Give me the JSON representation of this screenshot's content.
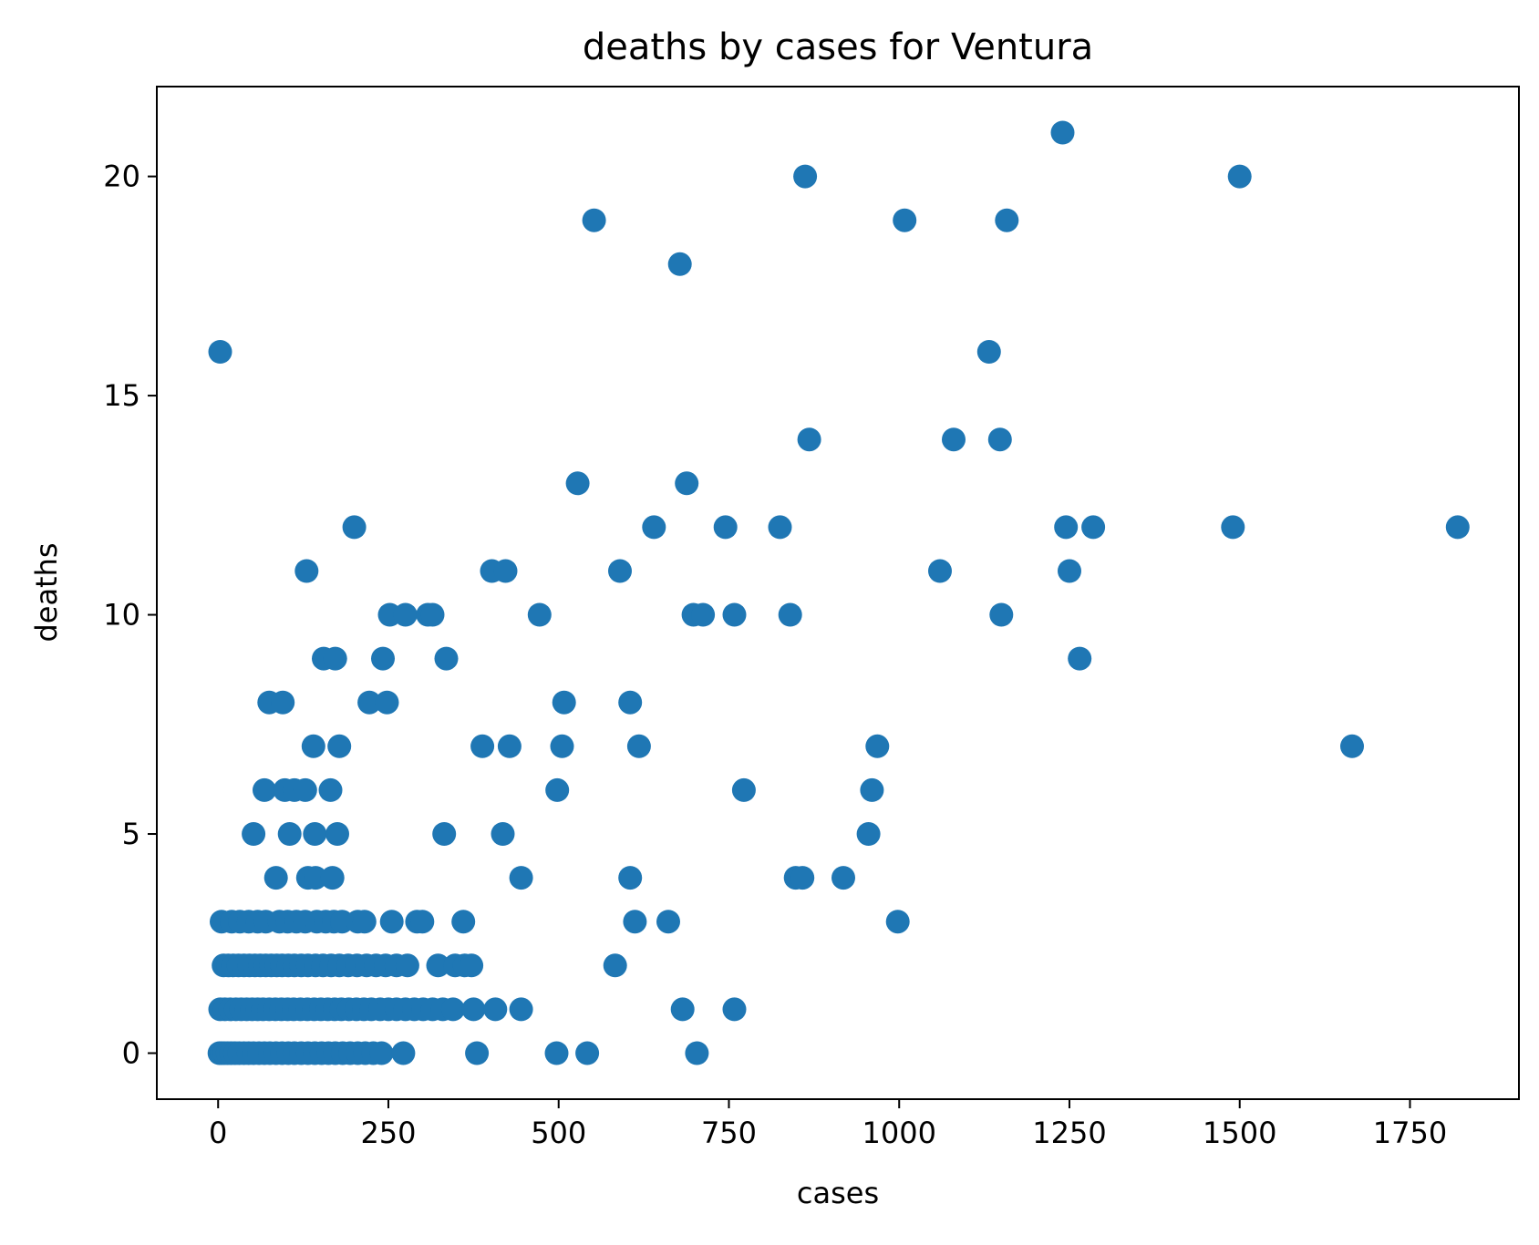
{
  "chart_data": {
    "type": "scatter",
    "title": "deaths by cases for Ventura",
    "xlabel": "cases",
    "ylabel": "deaths",
    "xlim": [
      -90,
      1910
    ],
    "ylim": [
      -1.05,
      22.05
    ],
    "xticks": [
      0,
      250,
      500,
      750,
      1000,
      1250,
      1500,
      1750
    ],
    "yticks": [
      0,
      5,
      10,
      15,
      20
    ],
    "xtick_labels": [
      "0",
      "250",
      "500",
      "750",
      "1000",
      "1250",
      "1500",
      "1750"
    ],
    "ytick_labels": [
      "0",
      "5",
      "10",
      "15",
      "20"
    ],
    "grid": false,
    "legend": "none",
    "marker_color": "#1f77b4",
    "points": [
      [
        2,
        0
      ],
      [
        5,
        0
      ],
      [
        9,
        0
      ],
      [
        14,
        0
      ],
      [
        19,
        0
      ],
      [
        25,
        0
      ],
      [
        31,
        0
      ],
      [
        38,
        0
      ],
      [
        45,
        0
      ],
      [
        52,
        0
      ],
      [
        60,
        0
      ],
      [
        68,
        0
      ],
      [
        76,
        0
      ],
      [
        85,
        0
      ],
      [
        94,
        0
      ],
      [
        103,
        0
      ],
      [
        112,
        0
      ],
      [
        122,
        0
      ],
      [
        132,
        0
      ],
      [
        142,
        0
      ],
      [
        152,
        0
      ],
      [
        162,
        0
      ],
      [
        172,
        0
      ],
      [
        183,
        0
      ],
      [
        194,
        0
      ],
      [
        205,
        0
      ],
      [
        216,
        0
      ],
      [
        228,
        0
      ],
      [
        240,
        0
      ],
      [
        272,
        0
      ],
      [
        380,
        0
      ],
      [
        497,
        0
      ],
      [
        542,
        0
      ],
      [
        703,
        0
      ],
      [
        3,
        1
      ],
      [
        10,
        1
      ],
      [
        18,
        1
      ],
      [
        26,
        1
      ],
      [
        34,
        1
      ],
      [
        42,
        1
      ],
      [
        50,
        1
      ],
      [
        58,
        1
      ],
      [
        66,
        1
      ],
      [
        75,
        1
      ],
      [
        84,
        1
      ],
      [
        93,
        1
      ],
      [
        102,
        1
      ],
      [
        111,
        1
      ],
      [
        121,
        1
      ],
      [
        131,
        1
      ],
      [
        141,
        1
      ],
      [
        151,
        1
      ],
      [
        161,
        1
      ],
      [
        171,
        1
      ],
      [
        181,
        1
      ],
      [
        192,
        1
      ],
      [
        203,
        1
      ],
      [
        214,
        1
      ],
      [
        225,
        1
      ],
      [
        238,
        1
      ],
      [
        250,
        1
      ],
      [
        262,
        1
      ],
      [
        275,
        1
      ],
      [
        288,
        1
      ],
      [
        301,
        1
      ],
      [
        315,
        1
      ],
      [
        330,
        1
      ],
      [
        345,
        1
      ],
      [
        375,
        1
      ],
      [
        407,
        1
      ],
      [
        445,
        1
      ],
      [
        682,
        1
      ],
      [
        758,
        1
      ],
      [
        8,
        2
      ],
      [
        15,
        2
      ],
      [
        22,
        2
      ],
      [
        30,
        2
      ],
      [
        38,
        2
      ],
      [
        46,
        2
      ],
      [
        54,
        2
      ],
      [
        62,
        2
      ],
      [
        70,
        2
      ],
      [
        78,
        2
      ],
      [
        86,
        2
      ],
      [
        94,
        2
      ],
      [
        103,
        2
      ],
      [
        112,
        2
      ],
      [
        122,
        2
      ],
      [
        132,
        2
      ],
      [
        143,
        2
      ],
      [
        154,
        2
      ],
      [
        166,
        2
      ],
      [
        178,
        2
      ],
      [
        191,
        2
      ],
      [
        204,
        2
      ],
      [
        218,
        2
      ],
      [
        232,
        2
      ],
      [
        246,
        2
      ],
      [
        262,
        2
      ],
      [
        278,
        2
      ],
      [
        323,
        2
      ],
      [
        348,
        2
      ],
      [
        362,
        2
      ],
      [
        372,
        2
      ],
      [
        583,
        2
      ],
      [
        5,
        3
      ],
      [
        20,
        3
      ],
      [
        32,
        3
      ],
      [
        45,
        3
      ],
      [
        58,
        3
      ],
      [
        70,
        3
      ],
      [
        90,
        3
      ],
      [
        102,
        3
      ],
      [
        115,
        3
      ],
      [
        128,
        3
      ],
      [
        145,
        3
      ],
      [
        158,
        3
      ],
      [
        170,
        3
      ],
      [
        182,
        3
      ],
      [
        205,
        3
      ],
      [
        215,
        3
      ],
      [
        255,
        3
      ],
      [
        292,
        3
      ],
      [
        300,
        3
      ],
      [
        360,
        3
      ],
      [
        612,
        3
      ],
      [
        661,
        3
      ],
      [
        998,
        3
      ],
      [
        85,
        4
      ],
      [
        132,
        4
      ],
      [
        143,
        4
      ],
      [
        168,
        4
      ],
      [
        445,
        4
      ],
      [
        605,
        4
      ],
      [
        848,
        4
      ],
      [
        858,
        4
      ],
      [
        918,
        4
      ],
      [
        52,
        5
      ],
      [
        105,
        5
      ],
      [
        142,
        5
      ],
      [
        175,
        5
      ],
      [
        332,
        5
      ],
      [
        418,
        5
      ],
      [
        955,
        5
      ],
      [
        68,
        6
      ],
      [
        98,
        6
      ],
      [
        112,
        6
      ],
      [
        128,
        6
      ],
      [
        165,
        6
      ],
      [
        498,
        6
      ],
      [
        772,
        6
      ],
      [
        960,
        6
      ],
      [
        140,
        7
      ],
      [
        178,
        7
      ],
      [
        388,
        7
      ],
      [
        428,
        7
      ],
      [
        505,
        7
      ],
      [
        618,
        7
      ],
      [
        968,
        7
      ],
      [
        1665,
        7
      ],
      [
        75,
        8
      ],
      [
        95,
        8
      ],
      [
        222,
        8
      ],
      [
        248,
        8
      ],
      [
        508,
        8
      ],
      [
        605,
        8
      ],
      [
        155,
        9
      ],
      [
        172,
        9
      ],
      [
        242,
        9
      ],
      [
        335,
        9
      ],
      [
        1265,
        9
      ],
      [
        252,
        10
      ],
      [
        275,
        10
      ],
      [
        308,
        10
      ],
      [
        315,
        10
      ],
      [
        472,
        10
      ],
      [
        698,
        10
      ],
      [
        712,
        10
      ],
      [
        758,
        10
      ],
      [
        840,
        10
      ],
      [
        1150,
        10
      ],
      [
        130,
        11
      ],
      [
        402,
        11
      ],
      [
        422,
        11
      ],
      [
        590,
        11
      ],
      [
        1060,
        11
      ],
      [
        1250,
        11
      ],
      [
        200,
        12
      ],
      [
        640,
        12
      ],
      [
        745,
        12
      ],
      [
        825,
        12
      ],
      [
        1245,
        12
      ],
      [
        1285,
        12
      ],
      [
        1490,
        12
      ],
      [
        1820,
        12
      ],
      [
        528,
        13
      ],
      [
        688,
        13
      ],
      [
        868,
        14
      ],
      [
        1080,
        14
      ],
      [
        1148,
        14
      ],
      [
        3,
        16
      ],
      [
        1132,
        16
      ],
      [
        678,
        18
      ],
      [
        552,
        19
      ],
      [
        1008,
        19
      ],
      [
        1158,
        19
      ],
      [
        862,
        20
      ],
      [
        1500,
        20
      ],
      [
        1240,
        21
      ]
    ]
  }
}
